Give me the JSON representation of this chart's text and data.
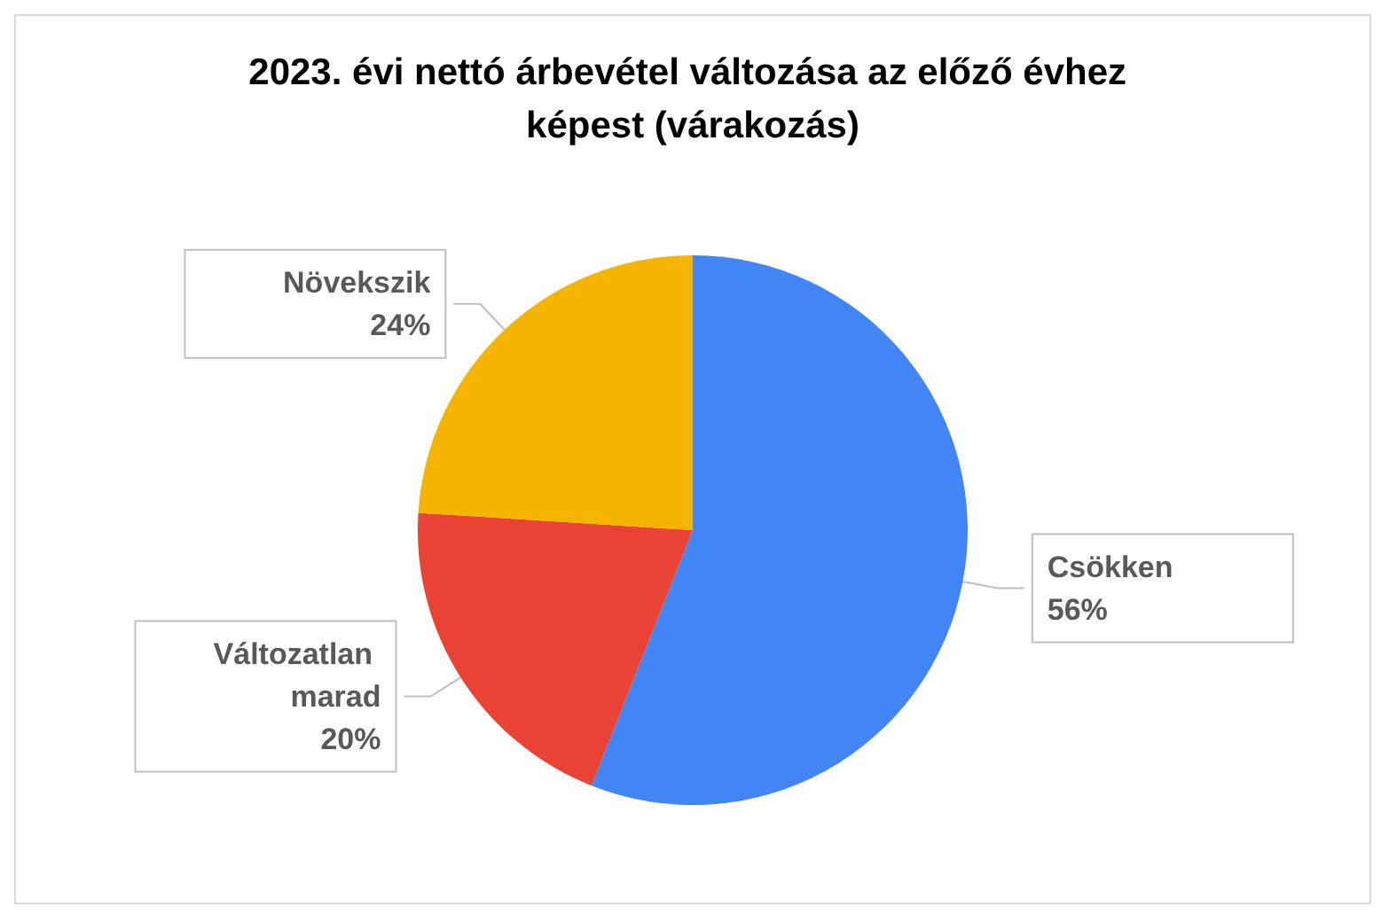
{
  "chart_data": {
    "type": "pie",
    "title": "2023. évi nettó árbevétel változása az előző évhez képest (várakozás)",
    "categories": [
      "Csökken",
      "Változatlan marad",
      "Növekszik"
    ],
    "values": [
      56,
      20,
      24
    ],
    "value_labels": [
      "56%",
      "20%",
      "24%"
    ],
    "colors": [
      "#4285f4",
      "#ea4335",
      "#f4b400"
    ],
    "legend": false
  }
}
